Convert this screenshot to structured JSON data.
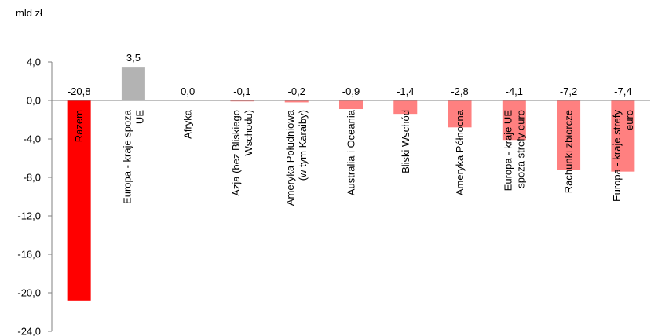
{
  "chart_data": {
    "type": "bar",
    "unit_label": "mld zł",
    "ylim": [
      -24,
      4
    ],
    "yticks": [
      4,
      0,
      -4,
      -8,
      -12,
      -16,
      -20,
      -24
    ],
    "ytick_labels": [
      "4,0",
      "0,0",
      "-4,0",
      "-8,0",
      "-12,0",
      "-16,0",
      "-20,0",
      "-24,0"
    ],
    "categories": [
      [
        "Razem"
      ],
      [
        "Europa - kraje spoza",
        "UE"
      ],
      [
        "Afryka"
      ],
      [
        "Azja (bez Bliskiego",
        "Wschodu)"
      ],
      [
        "Ameryka Południowa",
        "(w tym Karaiby)"
      ],
      [
        "Australia i Oceania"
      ],
      [
        "Bliski Wschód"
      ],
      [
        "Ameryka Północna"
      ],
      [
        "Europa - kraje UE",
        "spoza strefy euro"
      ],
      [
        "Rachunki zbiorcze"
      ],
      [
        "Europa - kraje strefy",
        "euro"
      ]
    ],
    "values": [
      -20.8,
      3.5,
      0.0,
      -0.1,
      -0.2,
      -0.9,
      -1.4,
      -2.8,
      -4.1,
      -7.2,
      -7.4
    ],
    "value_labels": [
      "-20,8",
      "3,5",
      "0,0",
      "-0,1",
      "-0,2",
      "-0,9",
      "-1,4",
      "-2,8",
      "-4,1",
      "-7,2",
      "-7,4"
    ],
    "colors": {
      "total": "#ff0000",
      "positive": "#b3b3b3",
      "negative": "#ff8080",
      "axis": "#808080"
    }
  }
}
